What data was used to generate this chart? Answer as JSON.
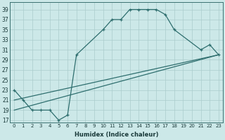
{
  "xlabel": "Humidex (Indice chaleur)",
  "ylabel": "",
  "bg_color": "#cce8e8",
  "line_color": "#2e6e6e",
  "grid_color": "#aacccc",
  "xlim": [
    -0.5,
    23.5
  ],
  "ylim": [
    16.5,
    40.5
  ],
  "yticks": [
    17,
    19,
    21,
    23,
    25,
    27,
    29,
    31,
    33,
    35,
    37,
    39
  ],
  "xticks": [
    0,
    1,
    2,
    3,
    4,
    5,
    6,
    7,
    8,
    9,
    10,
    11,
    12,
    13,
    14,
    15,
    16,
    17,
    18,
    19,
    20,
    21,
    22,
    23
  ],
  "line1_x": [
    0,
    1,
    2,
    3,
    4,
    5,
    6,
    7,
    10,
    11,
    12,
    13,
    14,
    15,
    16,
    17,
    18,
    21,
    22,
    23
  ],
  "line1_y": [
    23,
    21,
    19,
    19,
    19,
    17,
    18,
    30,
    35,
    37,
    37,
    39,
    39,
    39,
    39,
    38,
    35,
    31,
    32,
    30
  ],
  "line2_x": [
    0,
    23
  ],
  "line2_y": [
    19,
    30
  ],
  "line3_x": [
    0,
    23
  ],
  "line3_y": [
    21,
    30
  ]
}
